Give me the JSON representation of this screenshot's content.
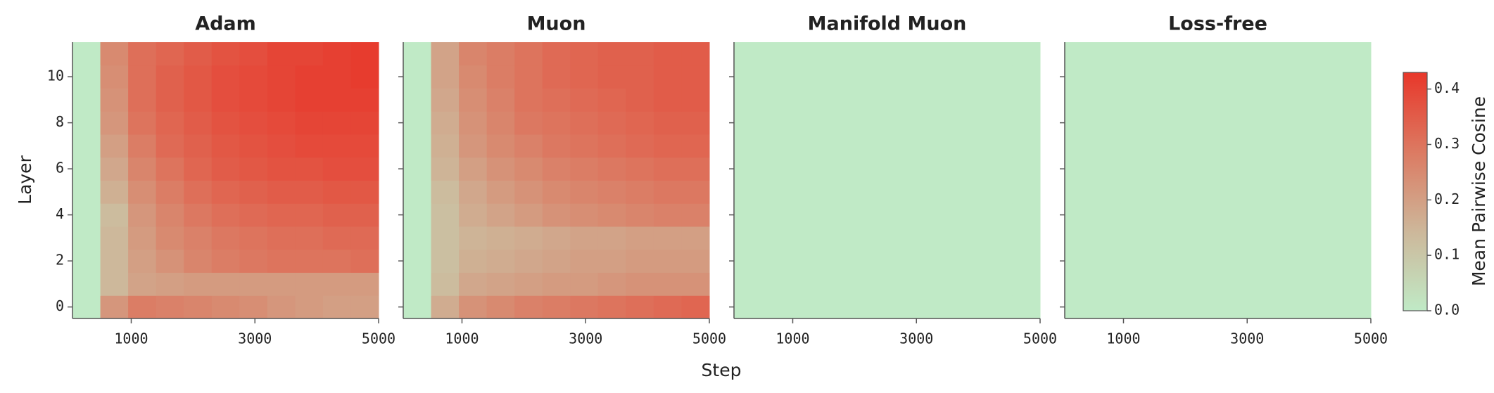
{
  "chart_data": {
    "type": "heatmap",
    "x_label": "Step",
    "y_label": "Layer",
    "x_bins": [
      50,
      500,
      950,
      1400,
      1850,
      2300,
      2750,
      3200,
      3650,
      4100,
      4550,
      5000
    ],
    "y": [
      0,
      1,
      2,
      3,
      4,
      5,
      6,
      7,
      8,
      9,
      10,
      11
    ],
    "xlim": [
      50,
      5000
    ],
    "xticks": [
      1000,
      3000,
      5000
    ],
    "ylim": [
      -0.5,
      11.5
    ],
    "yticks": [
      0,
      2,
      4,
      6,
      8,
      10
    ],
    "colorbar": {
      "label": "Mean Pairwise Cosine",
      "lim": [
        0,
        0.43
      ],
      "ticks": [
        {
          "value": 0,
          "label": "0.0"
        },
        0.1,
        0.2,
        0.3,
        0.4
      ],
      "colors": [
        "#c0eac6",
        "#cdb79a",
        "#dc7a62",
        "#e8372a"
      ]
    },
    "panels": [
      {
        "title": "Adam",
        "values": [
          [
            0,
            0.22,
            0.28,
            0.27,
            0.26,
            0.25,
            0.24,
            0.22,
            0.21,
            0.2,
            0.2
          ],
          [
            0,
            0.14,
            0.19,
            0.2,
            0.21,
            0.21,
            0.21,
            0.21,
            0.21,
            0.21,
            0.21
          ],
          [
            0,
            0.14,
            0.2,
            0.23,
            0.26,
            0.28,
            0.29,
            0.3,
            0.3,
            0.3,
            0.31
          ],
          [
            0,
            0.14,
            0.21,
            0.25,
            0.27,
            0.29,
            0.3,
            0.31,
            0.31,
            0.32,
            0.32
          ],
          [
            0,
            0.13,
            0.22,
            0.26,
            0.29,
            0.31,
            0.32,
            0.33,
            0.33,
            0.34,
            0.34
          ],
          [
            0,
            0.16,
            0.24,
            0.28,
            0.31,
            0.33,
            0.34,
            0.35,
            0.35,
            0.36,
            0.36
          ],
          [
            0,
            0.18,
            0.26,
            0.3,
            0.33,
            0.35,
            0.36,
            0.37,
            0.37,
            0.38,
            0.38
          ],
          [
            0,
            0.2,
            0.28,
            0.32,
            0.34,
            0.36,
            0.37,
            0.38,
            0.39,
            0.39,
            0.39
          ],
          [
            0,
            0.22,
            0.3,
            0.33,
            0.35,
            0.37,
            0.38,
            0.39,
            0.4,
            0.4,
            0.4
          ],
          [
            0,
            0.23,
            0.31,
            0.34,
            0.36,
            0.38,
            0.39,
            0.4,
            0.41,
            0.41,
            0.41
          ],
          [
            0,
            0.24,
            0.31,
            0.34,
            0.36,
            0.38,
            0.39,
            0.4,
            0.41,
            0.41,
            0.42
          ],
          [
            0,
            0.25,
            0.31,
            0.33,
            0.35,
            0.37,
            0.38,
            0.4,
            0.4,
            0.41,
            0.42
          ]
        ]
      },
      {
        "title": "Muon",
        "values": [
          [
            0,
            0.17,
            0.23,
            0.25,
            0.27,
            0.28,
            0.29,
            0.3,
            0.31,
            0.32,
            0.33
          ],
          [
            0,
            0.13,
            0.18,
            0.19,
            0.2,
            0.21,
            0.21,
            0.22,
            0.23,
            0.23,
            0.23
          ],
          [
            0,
            0.12,
            0.16,
            0.17,
            0.18,
            0.19,
            0.2,
            0.2,
            0.21,
            0.21,
            0.21
          ],
          [
            0,
            0.12,
            0.15,
            0.16,
            0.17,
            0.18,
            0.19,
            0.19,
            0.2,
            0.2,
            0.2
          ],
          [
            0,
            0.12,
            0.17,
            0.19,
            0.21,
            0.23,
            0.24,
            0.25,
            0.26,
            0.27,
            0.27
          ],
          [
            0,
            0.13,
            0.18,
            0.21,
            0.23,
            0.25,
            0.26,
            0.27,
            0.28,
            0.29,
            0.29
          ],
          [
            0,
            0.15,
            0.2,
            0.23,
            0.25,
            0.27,
            0.28,
            0.29,
            0.3,
            0.31,
            0.31
          ],
          [
            0,
            0.16,
            0.22,
            0.25,
            0.27,
            0.29,
            0.3,
            0.31,
            0.32,
            0.33,
            0.33
          ],
          [
            0,
            0.17,
            0.23,
            0.26,
            0.29,
            0.3,
            0.31,
            0.32,
            0.33,
            0.34,
            0.34
          ],
          [
            0,
            0.18,
            0.24,
            0.27,
            0.3,
            0.31,
            0.32,
            0.33,
            0.34,
            0.35,
            0.35
          ],
          [
            0,
            0.19,
            0.25,
            0.28,
            0.3,
            0.32,
            0.33,
            0.34,
            0.34,
            0.35,
            0.35
          ],
          [
            0,
            0.19,
            0.26,
            0.28,
            0.3,
            0.32,
            0.33,
            0.34,
            0.34,
            0.35,
            0.35
          ]
        ]
      },
      {
        "title": "Manifold Muon",
        "values": [
          [
            0,
            0,
            0,
            0,
            0,
            0,
            0,
            0,
            0,
            0,
            0
          ],
          [
            0,
            0,
            0,
            0,
            0,
            0,
            0,
            0,
            0,
            0,
            0
          ],
          [
            0,
            0,
            0,
            0,
            0,
            0,
            0,
            0,
            0,
            0,
            0
          ],
          [
            0,
            0,
            0,
            0,
            0,
            0,
            0,
            0,
            0,
            0,
            0
          ],
          [
            0,
            0,
            0,
            0,
            0,
            0,
            0,
            0,
            0,
            0,
            0
          ],
          [
            0,
            0,
            0,
            0,
            0,
            0,
            0,
            0,
            0,
            0,
            0
          ],
          [
            0,
            0,
            0,
            0,
            0,
            0,
            0,
            0,
            0,
            0,
            0
          ],
          [
            0,
            0,
            0,
            0,
            0,
            0,
            0,
            0,
            0,
            0,
            0
          ],
          [
            0,
            0,
            0,
            0,
            0,
            0,
            0,
            0,
            0,
            0,
            0
          ],
          [
            0,
            0,
            0,
            0,
            0,
            0,
            0,
            0,
            0,
            0,
            0
          ],
          [
            0,
            0,
            0,
            0,
            0,
            0,
            0,
            0,
            0,
            0,
            0
          ],
          [
            0,
            0,
            0,
            0,
            0,
            0,
            0,
            0,
            0,
            0,
            0
          ]
        ]
      },
      {
        "title": "Loss-free",
        "values": [
          [
            0,
            0,
            0,
            0,
            0,
            0,
            0,
            0,
            0,
            0,
            0
          ],
          [
            0,
            0,
            0,
            0,
            0,
            0,
            0,
            0,
            0,
            0,
            0
          ],
          [
            0,
            0,
            0,
            0,
            0,
            0,
            0,
            0,
            0,
            0,
            0
          ],
          [
            0,
            0,
            0,
            0,
            0,
            0,
            0,
            0,
            0,
            0,
            0
          ],
          [
            0,
            0,
            0,
            0,
            0,
            0,
            0,
            0,
            0,
            0,
            0
          ],
          [
            0,
            0,
            0,
            0,
            0,
            0,
            0,
            0,
            0,
            0,
            0
          ],
          [
            0,
            0,
            0,
            0,
            0,
            0,
            0,
            0,
            0,
            0,
            0
          ],
          [
            0,
            0,
            0,
            0,
            0,
            0,
            0,
            0,
            0,
            0,
            0
          ],
          [
            0,
            0,
            0,
            0,
            0,
            0,
            0,
            0,
            0,
            0,
            0
          ],
          [
            0,
            0,
            0,
            0,
            0,
            0,
            0,
            0,
            0,
            0,
            0
          ],
          [
            0,
            0,
            0,
            0,
            0,
            0,
            0,
            0,
            0,
            0,
            0
          ],
          [
            0,
            0,
            0,
            0,
            0,
            0,
            0,
            0,
            0,
            0,
            0
          ]
        ]
      }
    ]
  }
}
